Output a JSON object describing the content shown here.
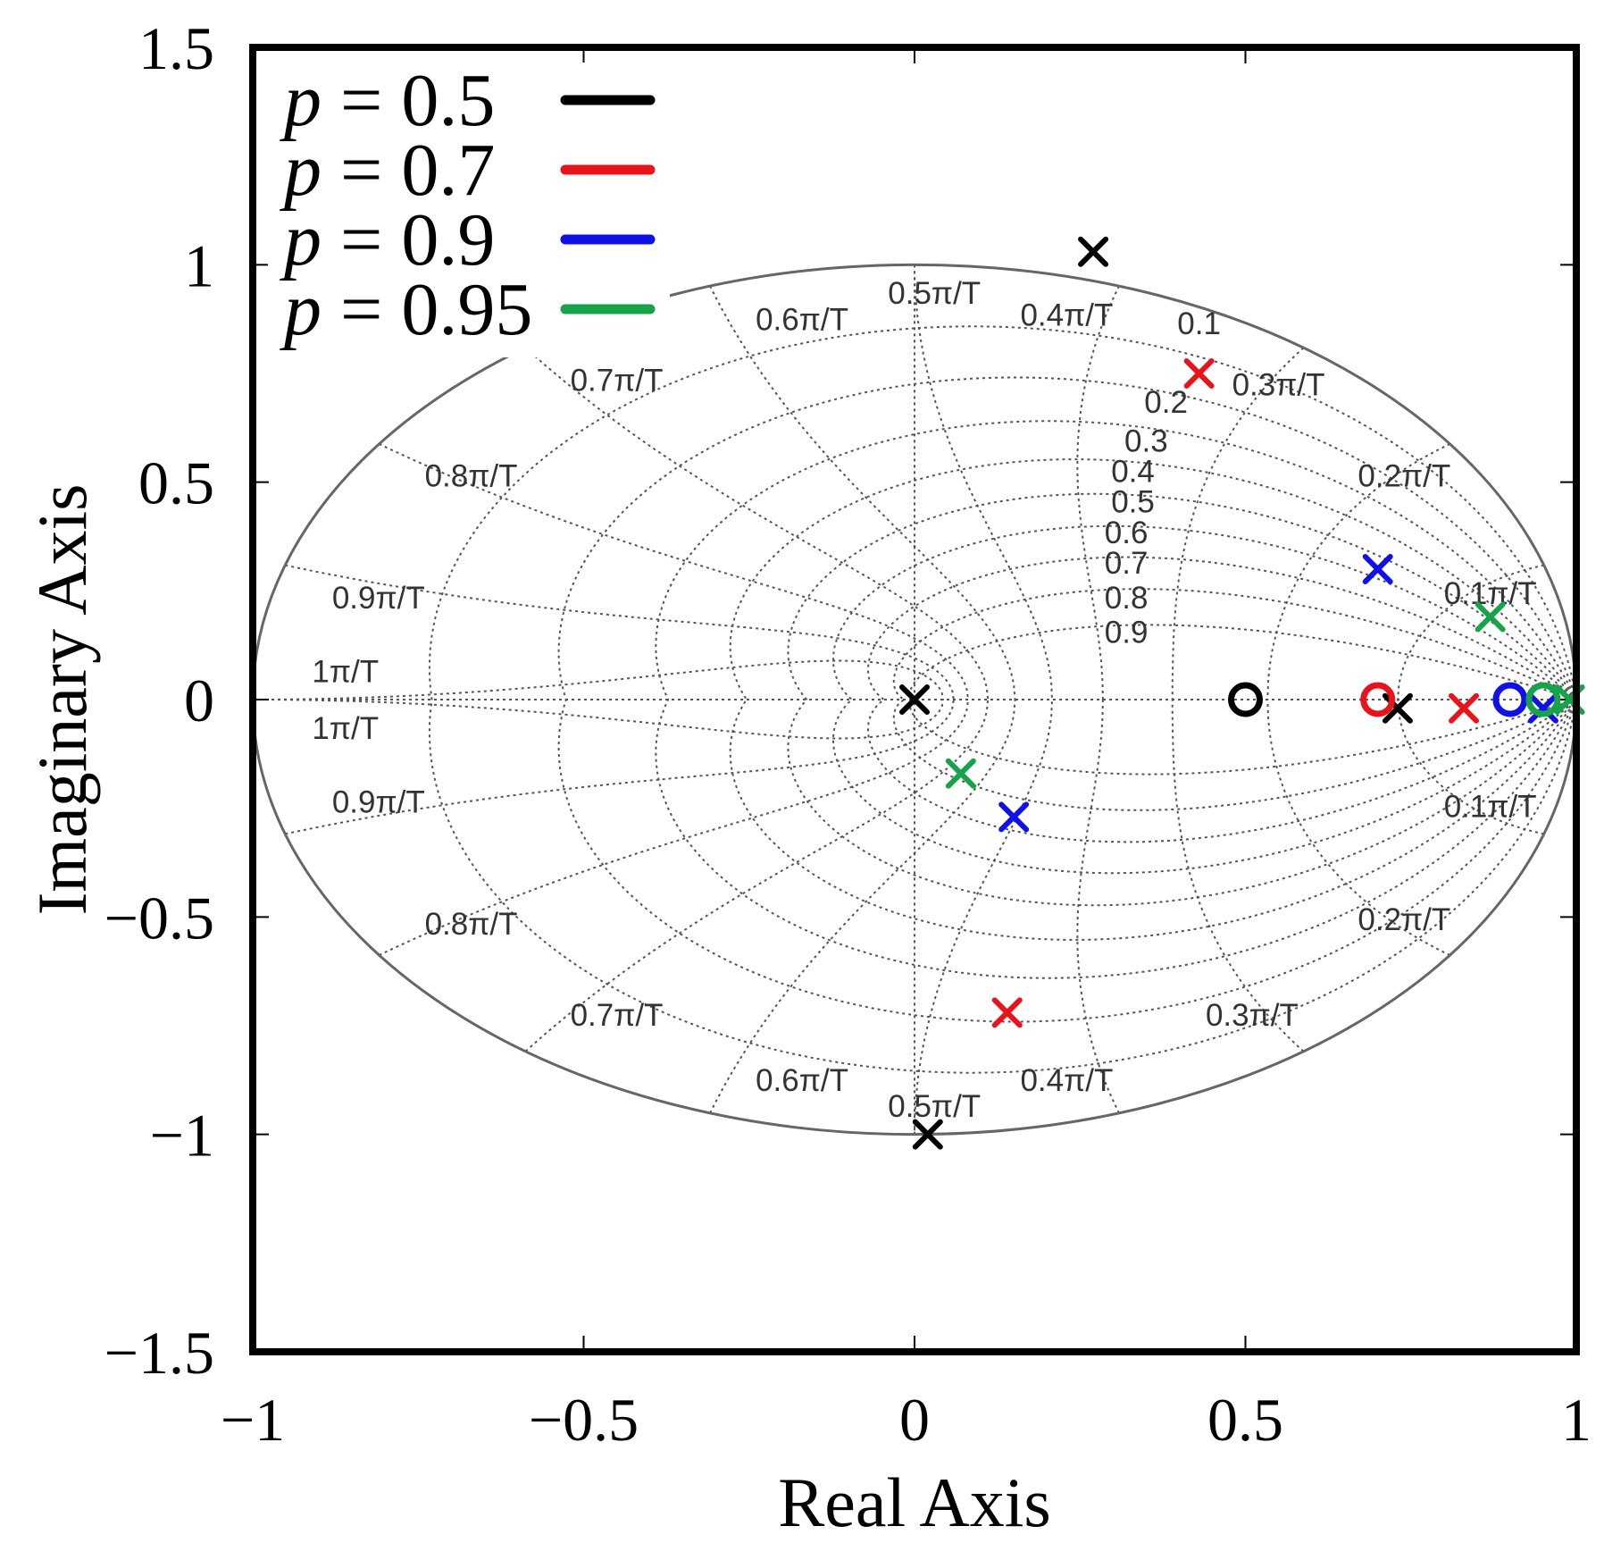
{
  "chart_data": {
    "type": "scatter",
    "subtype": "pole-zero map with z-plane damping/frequency grid",
    "xlabel": "Real Axis",
    "ylabel": "Imaginary Axis",
    "xlim": [
      -1,
      1
    ],
    "ylim": [
      -1.5,
      1.5
    ],
    "x_ticks": [
      -1,
      -0.5,
      0,
      0.5,
      1
    ],
    "x_tick_labels": [
      "−1",
      "−0.5",
      "0",
      "0.5",
      "1"
    ],
    "y_ticks": [
      -1.5,
      -1,
      -0.5,
      0,
      0.5,
      1,
      1.5
    ],
    "y_tick_labels": [
      "−1.5",
      "−1",
      "−0.5",
      "0",
      "0.5",
      "1",
      "1.5"
    ],
    "grid": {
      "damping_ratios": [
        0.1,
        0.2,
        0.3,
        0.4,
        0.5,
        0.6,
        0.7,
        0.8,
        0.9
      ],
      "damping_labels": [
        "0.1",
        "0.2",
        "0.3",
        "0.4",
        "0.5",
        "0.6",
        "0.7",
        "0.8",
        "0.9"
      ],
      "natural_freqs": [
        0.1,
        0.2,
        0.3,
        0.4,
        0.5,
        0.6,
        0.7,
        0.8,
        0.9,
        1.0
      ],
      "freq_labels": [
        "0.1π/T",
        "0.2π/T",
        "0.3π/T",
        "0.4π/T",
        "0.5π/T",
        "0.6π/T",
        "0.7π/T",
        "0.8π/T",
        "0.9π/T",
        "1π/T"
      ]
    },
    "legend": {
      "position": "top-left",
      "entries": [
        {
          "prefix": "p",
          "label": " = 0.5",
          "color": "#000000"
        },
        {
          "prefix": "p",
          "label": " = 0.7",
          "color": "#e8141c"
        },
        {
          "prefix": "p",
          "label": " = 0.9",
          "color": "#1010e8"
        },
        {
          "prefix": "p",
          "label": " = 0.95",
          "color": "#16a34a"
        }
      ]
    },
    "series": [
      {
        "name": "p = 0.5",
        "color": "#000000",
        "poles": [
          [
            0.27,
            1.03
          ],
          [
            0.0,
            0.0
          ],
          [
            0.73,
            -0.02
          ],
          [
            0.02,
            -1.0
          ]
        ],
        "zeros": [
          [
            0.5,
            0.0
          ]
        ]
      },
      {
        "name": "p = 0.7",
        "color": "#e8141c",
        "poles": [
          [
            0.43,
            0.75
          ],
          [
            0.83,
            -0.02
          ],
          [
            0.14,
            -0.72
          ]
        ],
        "zeros": [
          [
            0.7,
            0.0
          ]
        ]
      },
      {
        "name": "p = 0.9",
        "color": "#1010e8",
        "poles": [
          [
            0.7,
            0.3
          ],
          [
            0.15,
            -0.27
          ],
          [
            0.95,
            -0.02
          ]
        ],
        "zeros": [
          [
            0.9,
            0.0
          ]
        ]
      },
      {
        "name": "p = 0.95",
        "color": "#16a34a",
        "poles": [
          [
            0.87,
            0.19
          ],
          [
            0.07,
            -0.17
          ],
          [
            0.99,
            0.0
          ]
        ],
        "zeros": [
          [
            0.95,
            0.0
          ]
        ]
      }
    ]
  }
}
